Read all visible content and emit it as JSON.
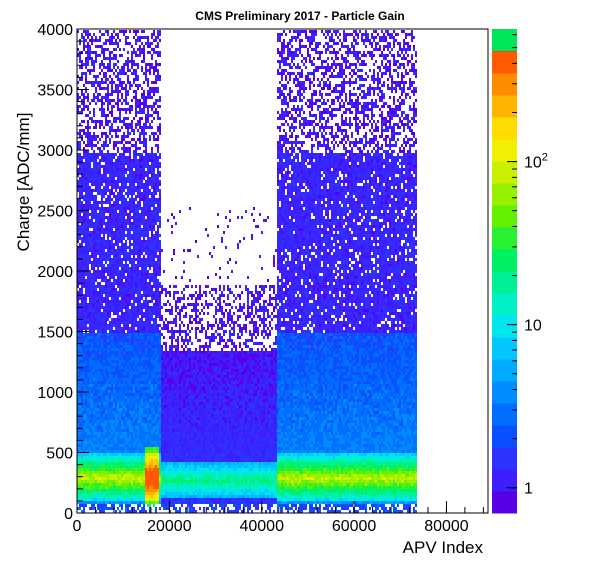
{
  "chart_data": {
    "type": "heatmap",
    "title": "CMS Preliminary 2017  -  Particle Gain",
    "xlabel": "APV Index",
    "ylabel": "Charge [ADC/mm]",
    "xlim": [
      0,
      89000
    ],
    "ylim": [
      0,
      4000
    ],
    "x_ticks": [
      0,
      20000,
      40000,
      60000,
      80000
    ],
    "y_ticks": [
      0,
      500,
      1000,
      1500,
      2000,
      2500,
      3000,
      3500,
      4000
    ],
    "z_scale": "log",
    "z_range": [
      0.7,
      650
    ],
    "z_ticks": [
      {
        "value": 1,
        "base": "1",
        "exp": ""
      },
      {
        "value": 10,
        "base": "10",
        "exp": ""
      },
      {
        "value": 100,
        "base": "10",
        "exp": "2"
      }
    ],
    "regions": [
      {
        "x": [
          0,
          18000
        ],
        "y_top": 4000,
        "peak_y": 300,
        "peak_x": 16000,
        "note": "dense"
      },
      {
        "x": [
          18000,
          43000
        ],
        "y_top": 2550,
        "peak_y": 280
      },
      {
        "x": [
          43000,
          73500
        ],
        "y_top": 4000,
        "peak_y": 300
      }
    ],
    "palette": [
      "#5a00e6",
      "#3c1eff",
      "#2d32ff",
      "#0a50ff",
      "#006eff",
      "#008cff",
      "#00aaff",
      "#00c8ff",
      "#00e6f0",
      "#00f0c8",
      "#00f096",
      "#00f064",
      "#28f032",
      "#64f000",
      "#96f000",
      "#c8f000",
      "#f0f000",
      "#ffdc00",
      "#ffb400",
      "#ff8c00",
      "#ff5a00",
      "#ff2800",
      "#00e65a"
    ]
  }
}
